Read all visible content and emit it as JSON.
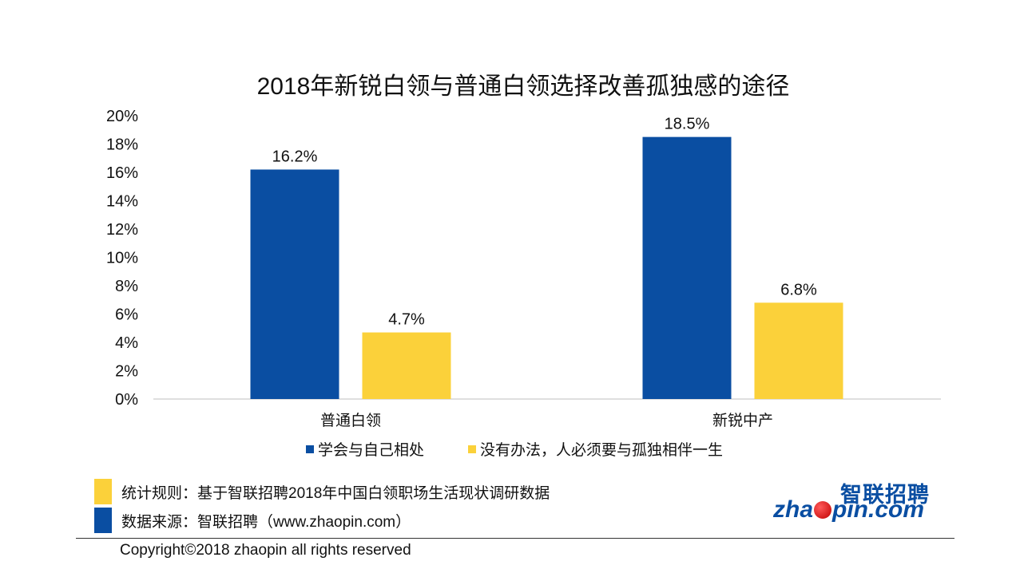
{
  "colors": {
    "series1": "#0a4ea2",
    "series2": "#fbd13a",
    "text": "#111111",
    "axis": "#bfbfbf"
  },
  "chart_data": {
    "type": "bar",
    "title": "2018年新锐白领与普通白领选择改善孤独感的途径",
    "categories": [
      "普通白领",
      "新锐中产"
    ],
    "series": [
      {
        "name": "学会与自己相处",
        "values": [
          16.2,
          18.5
        ],
        "labels": [
          "16.2%",
          "18.5%"
        ],
        "color": "#0a4ea2"
      },
      {
        "name": "没有办法，人必须要与孤独相伴一生",
        "values": [
          4.7,
          6.8
        ],
        "labels": [
          "4.7%",
          "6.8%"
        ],
        "color": "#fbd13a"
      }
    ],
    "ylim": [
      0,
      20
    ],
    "yticks": [
      "0%",
      "2%",
      "4%",
      "6%",
      "8%",
      "10%",
      "12%",
      "14%",
      "16%",
      "18%",
      "20%"
    ],
    "grid": false,
    "legend": "bottom"
  },
  "footer": {
    "stats_rule": "统计规则：基于智联招聘2018年中国白领职场生活现状调研数据",
    "source": "数据来源：智联招聘（www.zhaopin.com）",
    "copyright": "Copyright©2018 zhaopin all rights reserved"
  },
  "logo": {
    "cn": "智联招聘",
    "en_left": "zha",
    "en_right": "pin.com"
  }
}
